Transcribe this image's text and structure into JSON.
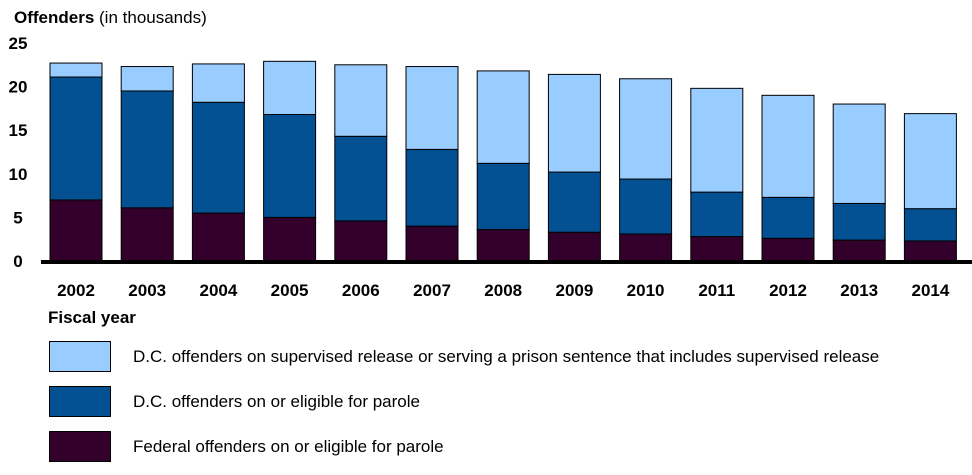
{
  "chart_data": {
    "type": "bar",
    "stacked": true,
    "title": "",
    "ylabel_bold": "Offenders",
    "ylabel_rest": " (in thousands)",
    "xlabel": "Fiscal year",
    "ylim": [
      0,
      25
    ],
    "yticks": [
      0,
      5,
      10,
      15,
      20,
      25
    ],
    "categories": [
      "2002",
      "2003",
      "2004",
      "2005",
      "2006",
      "2007",
      "2008",
      "2009",
      "2010",
      "2011",
      "2012",
      "2013",
      "2014"
    ],
    "series": [
      {
        "key": "federal",
        "name": "Federal offenders on or eligible for parole",
        "color": "#33002b",
        "values": [
          7.0,
          6.1,
          5.5,
          5.0,
          4.6,
          4.0,
          3.6,
          3.3,
          3.1,
          2.8,
          2.6,
          2.4,
          2.3
        ]
      },
      {
        "key": "dc_parole",
        "name": "D.C. offenders on or eligible for parole",
        "color": "#035193",
        "values": [
          14.1,
          13.4,
          12.7,
          11.8,
          9.7,
          8.8,
          7.6,
          6.9,
          6.3,
          5.1,
          4.7,
          4.2,
          3.7
        ]
      },
      {
        "key": "dc_supervised",
        "name": "D.C. offenders on supervised release or serving a prison sentence that includes supervised release",
        "color": "#99ccff",
        "values": [
          1.6,
          2.8,
          4.4,
          6.1,
          8.2,
          9.5,
          10.6,
          11.2,
          11.5,
          11.9,
          11.7,
          11.4,
          10.9
        ]
      }
    ],
    "legend_order": [
      "dc_supervised",
      "dc_parole",
      "federal"
    ],
    "grid": false,
    "legend_position": "bottom"
  }
}
